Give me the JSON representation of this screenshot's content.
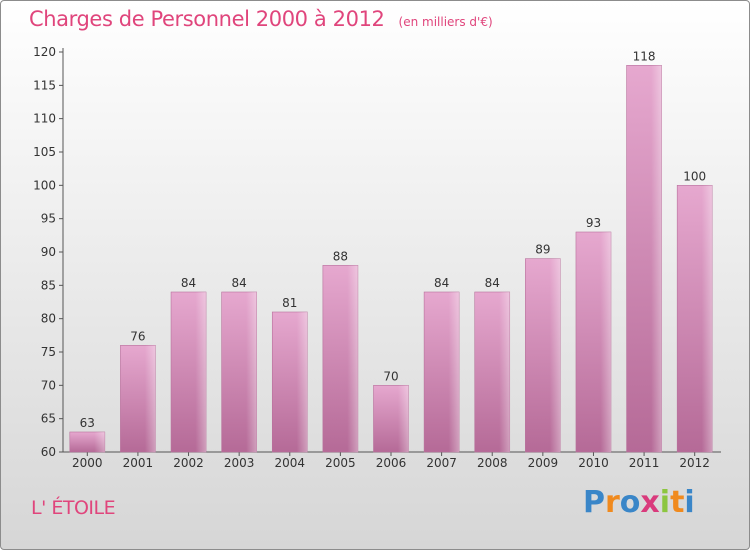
{
  "title": {
    "main": "Charges de Personnel 2000 à 2012",
    "sub": "(en milliers d'€)"
  },
  "commune": "L' ÉTOILE",
  "brand": {
    "letters": [
      "P",
      "r",
      "o",
      "x",
      "i",
      "t",
      "i"
    ],
    "colors": [
      "#3a86c8",
      "#f08a1e",
      "#3a86c8",
      "#d93a7c",
      "#8cc63f",
      "#f08a1e",
      "#3a86c8"
    ]
  },
  "chart_data": {
    "type": "bar",
    "categories": [
      "2000",
      "2001",
      "2002",
      "2003",
      "2004",
      "2005",
      "2006",
      "2007",
      "2008",
      "2009",
      "2010",
      "2011",
      "2012"
    ],
    "values": [
      63,
      76,
      84,
      84,
      81,
      88,
      70,
      84,
      84,
      89,
      93,
      118,
      100
    ],
    "value_labels": [
      "63",
      "76",
      "84",
      "84",
      "81",
      "88",
      "70",
      "84",
      "84",
      "89",
      "93",
      "118",
      "100"
    ],
    "yticks": [
      "60",
      "65",
      "70",
      "75",
      "80",
      "85",
      "90",
      "95",
      "100",
      "105",
      "110",
      "115",
      "120"
    ],
    "ylim": [
      60,
      120
    ],
    "ytick_step": 5,
    "grid": false,
    "bar_color": "#d58ab4"
  }
}
